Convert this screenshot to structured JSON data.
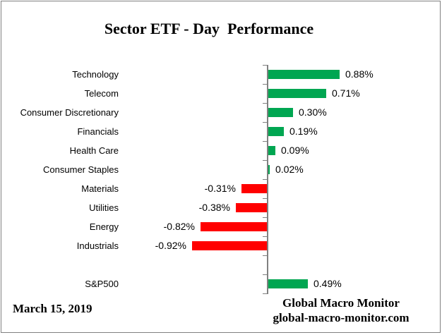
{
  "title": "Sector ETF - Day  Performance",
  "footer": {
    "date": "March 15, 2019",
    "brand_line1": "Global Macro Monitor",
    "brand_line2": "global-macro-monitor.com"
  },
  "colors": {
    "positive_bar": "#00A651",
    "negative_bar": "#FF0000",
    "axis": "#808080",
    "frame_border": "#808080",
    "text": "#000000"
  },
  "chart_data": {
    "type": "bar",
    "orientation": "horizontal",
    "title": "Sector ETF - Day  Performance",
    "value_format": "percent",
    "baseline": 0,
    "grid": false,
    "legend": false,
    "categories": [
      "Technology",
      "Telecom",
      "Consumer Discretionary",
      "Financials",
      "Health Care",
      "Consumer Staples",
      "Materials",
      "Utilities",
      "Energy",
      "Industrials",
      "",
      "S&P500"
    ],
    "values": [
      0.88,
      0.71,
      0.3,
      0.19,
      0.09,
      0.02,
      -0.31,
      -0.38,
      -0.82,
      -0.92,
      null,
      0.49
    ],
    "value_labels": [
      "0.88%",
      "0.71%",
      "0.30%",
      "0.19%",
      "0.09%",
      "0.02%",
      "-0.31%",
      "-0.38%",
      "-0.82%",
      "-0.92%",
      null,
      "0.49%"
    ]
  }
}
